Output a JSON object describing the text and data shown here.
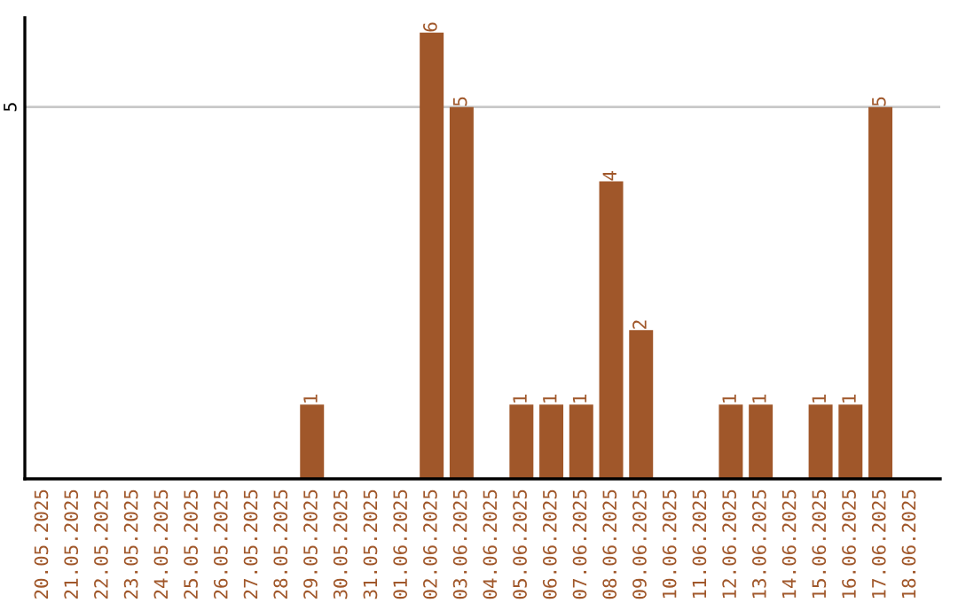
{
  "chart_data": {
    "type": "bar",
    "categories": [
      "20.05.2025",
      "21.05.2025",
      "22.05.2025",
      "23.05.2025",
      "24.05.2025",
      "25.05.2025",
      "26.05.2025",
      "27.05.2025",
      "28.05.2025",
      "29.05.2025",
      "30.05.2025",
      "31.05.2025",
      "01.06.2025",
      "02.06.2025",
      "03.06.2025",
      "04.06.2025",
      "05.06.2025",
      "06.06.2025",
      "07.06.2025",
      "08.06.2025",
      "09.06.2025",
      "10.06.2025",
      "11.06.2025",
      "12.06.2025",
      "13.06.2025",
      "14.06.2025",
      "15.06.2025",
      "16.06.2025",
      "17.06.2025",
      "18.06.2025"
    ],
    "values": [
      0,
      0,
      0,
      0,
      0,
      0,
      0,
      0,
      0,
      1,
      0,
      0,
      0,
      6,
      5,
      0,
      1,
      1,
      1,
      4,
      2,
      0,
      0,
      1,
      1,
      0,
      1,
      1,
      5,
      0
    ],
    "value_labels": [
      null,
      null,
      null,
      null,
      null,
      null,
      null,
      null,
      null,
      "1",
      null,
      null,
      null,
      "6",
      "5",
      null,
      "1",
      "1",
      "1",
      "4",
      "2",
      null,
      null,
      "1",
      "1",
      null,
      "1",
      "1",
      "5",
      null
    ],
    "color": "#a0572a",
    "ylim": [
      0,
      6.2
    ],
    "yticks": [
      5
    ],
    "grid": "y"
  }
}
